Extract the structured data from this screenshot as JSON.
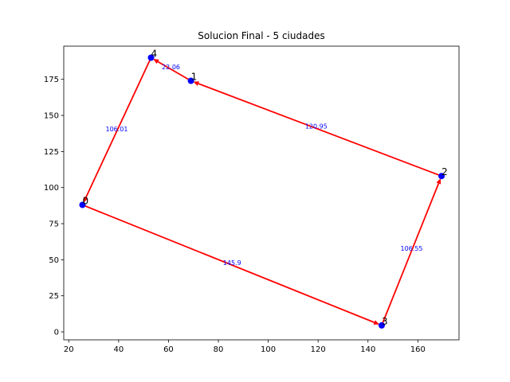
{
  "chart_data": {
    "type": "scatter",
    "title": "Solucion Final - 5 ciudades",
    "xlabel": "",
    "ylabel": "",
    "xlim": [
      18,
      176.5
    ],
    "ylim": [
      -5.5,
      198
    ],
    "x_ticks": [
      20,
      40,
      60,
      80,
      100,
      120,
      140,
      160
    ],
    "y_ticks": [
      0,
      25,
      50,
      75,
      100,
      125,
      150,
      175
    ],
    "grid": false,
    "cities": [
      {
        "label": "0",
        "x": 25.5,
        "y": 88
      },
      {
        "label": "1",
        "x": 69,
        "y": 174
      },
      {
        "label": "2",
        "x": 169.5,
        "y": 108
      },
      {
        "label": "3",
        "x": 145.5,
        "y": 4.5
      },
      {
        "label": "4",
        "x": 53,
        "y": 190
      }
    ],
    "route": [
      {
        "from": 0,
        "to": 3,
        "distance": "145.9"
      },
      {
        "from": 3,
        "to": 2,
        "distance": "106.55"
      },
      {
        "from": 2,
        "to": 1,
        "distance": "120.95"
      },
      {
        "from": 1,
        "to": 4,
        "distance": "22.06"
      },
      {
        "from": 4,
        "to": 0,
        "distance": "106.01"
      }
    ],
    "colors": {
      "route": "#ff0000",
      "point": "#0000ff",
      "edge_label": "#0000ff"
    }
  }
}
